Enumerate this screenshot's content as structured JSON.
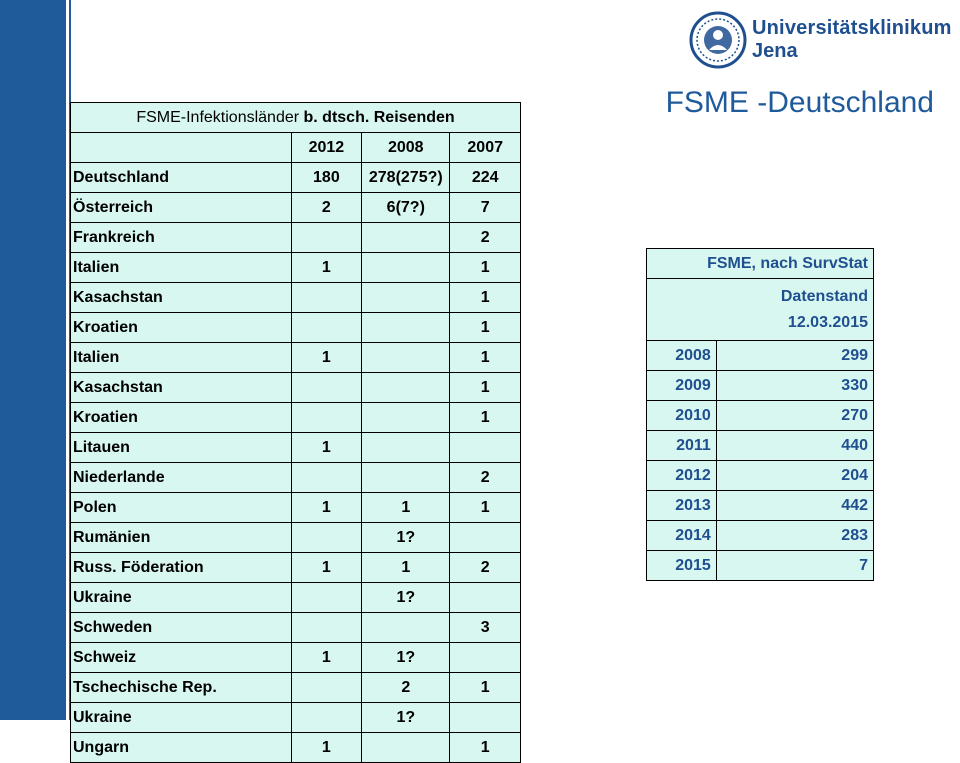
{
  "title": "FSME -Deutschland",
  "logo": {
    "line1": "Universitätsklinikum",
    "line2": "Jena"
  },
  "left_table": {
    "header_prefix": "FSME-Infektionsländer ",
    "header_bold": "b. dtsch. Reisenden",
    "columns": [
      "",
      "2012",
      "2008",
      "2007"
    ],
    "rows": [
      [
        "Deutschland",
        "180",
        "278(275?)",
        "224"
      ],
      [
        "Österreich",
        "2",
        "6(7?)",
        "7"
      ],
      [
        "Frankreich",
        "",
        "",
        "2"
      ],
      [
        "Italien",
        "1",
        "",
        "1"
      ],
      [
        "Kasachstan",
        "",
        "",
        "1"
      ],
      [
        "Kroatien",
        "",
        "",
        "1"
      ],
      [
        "Italien",
        "1",
        "",
        "1"
      ],
      [
        "Kasachstan",
        "",
        "",
        "1"
      ],
      [
        "Kroatien",
        "",
        "",
        "1"
      ],
      [
        "Litauen",
        "1",
        "",
        ""
      ],
      [
        "Niederlande",
        "",
        "",
        "2"
      ],
      [
        "Polen",
        "1",
        "1",
        "1"
      ],
      [
        "Rumänien",
        "",
        "1?",
        ""
      ],
      [
        "Russ. Föderation",
        "1",
        "1",
        "2"
      ],
      [
        "Ukraine",
        "",
        "1?",
        ""
      ],
      [
        "Schweden",
        "",
        "",
        "3"
      ],
      [
        "Schweiz",
        "1",
        "1?",
        ""
      ],
      [
        "Tschechische Rep.",
        "",
        "2",
        "1"
      ],
      [
        "Ukraine",
        "",
        "1?",
        ""
      ],
      [
        "Ungarn",
        "1",
        "",
        "1"
      ]
    ]
  },
  "right_table": {
    "header": "FSME, nach SurvStat",
    "stand_line1": "Datenstand",
    "stand_line2": "12.03.2015",
    "rows": [
      [
        "2008",
        "299"
      ],
      [
        "2009",
        "330"
      ],
      [
        "2010",
        "270"
      ],
      [
        "2011",
        "440"
      ],
      [
        "2012",
        "204"
      ],
      [
        "2013",
        "442"
      ],
      [
        "2014",
        "283"
      ],
      [
        "2015",
        "7"
      ]
    ]
  },
  "colors": {
    "brand_blue": "#1f5a9a",
    "table_fill": "#d9f7f1"
  }
}
